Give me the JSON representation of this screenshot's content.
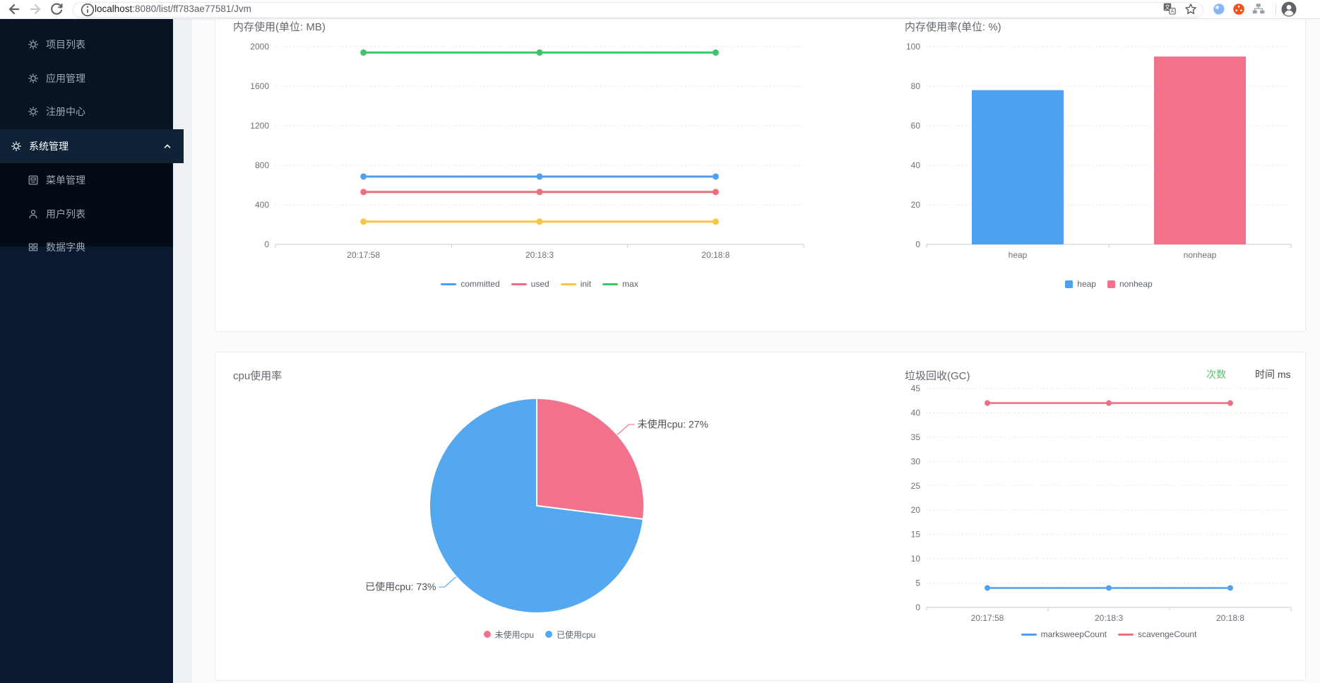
{
  "browser": {
    "url_host": "localhost",
    "url_path": ":8080/list/ff783ae77581/Jvm"
  },
  "sidebar": {
    "items": [
      {
        "label": "项目列表",
        "icon": "gear",
        "active": false
      },
      {
        "label": "应用管理",
        "icon": "gear",
        "active": false
      },
      {
        "label": "注册中心",
        "icon": "gear",
        "active": false
      },
      {
        "label": "系统管理",
        "icon": "gear",
        "active": true,
        "expanded": true
      },
      {
        "label": "菜单管理",
        "icon": "menu-doc",
        "active": false
      },
      {
        "label": "用户列表",
        "icon": "user",
        "active": false
      },
      {
        "label": "数据字典",
        "icon": "grid",
        "active": false
      }
    ]
  },
  "chart_data": [
    {
      "type": "line",
      "title": "内存使用(单位: MB)",
      "categories": [
        "20:17:58",
        "20:18:3",
        "20:18:8"
      ],
      "series": [
        {
          "name": "committed",
          "color": "#4da2f0",
          "values": [
            686,
            686,
            686
          ]
        },
        {
          "name": "used",
          "color": "#ee6e80",
          "values": [
            530,
            530,
            530
          ]
        },
        {
          "name": "init",
          "color": "#f7c649",
          "values": [
            230,
            230,
            230
          ]
        },
        {
          "name": "max",
          "color": "#43c26c",
          "values": [
            1940,
            1940,
            1940
          ]
        }
      ],
      "ylim": [
        0,
        2000
      ],
      "yticks": [
        0,
        400,
        800,
        1200,
        1600,
        2000
      ],
      "grid": "dotted",
      "legend_position": "bottom",
      "legend_icon": "line"
    },
    {
      "type": "bar",
      "title": "内存使用率(单位: %)",
      "categories": [
        "heap",
        "nonheap"
      ],
      "values": [
        78,
        95
      ],
      "colors": [
        "#4da2f0",
        "#f2718b"
      ],
      "ylim": [
        0,
        100
      ],
      "yticks": [
        0,
        20,
        40,
        60,
        80,
        100
      ],
      "grid": "dotted",
      "legend_position": "bottom",
      "legend_icon": "rect"
    },
    {
      "type": "pie",
      "title": "cpu使用率",
      "slices": [
        {
          "name": "未使用cpu",
          "value": 27,
          "color": "#f2718b",
          "label": "未使用cpu: 27%"
        },
        {
          "name": "已使用cpu",
          "value": 73,
          "color": "#54a8f0",
          "label": "已使用cpu: 73%"
        }
      ],
      "legend_position": "bottom",
      "legend_icon": "circle"
    },
    {
      "type": "line",
      "title": "垃圾回收(GC)",
      "unit_toggle": {
        "count": "次数",
        "time": "时间 ms",
        "active": "次数"
      },
      "categories": [
        "20:17:58",
        "20:18:3",
        "20:18:8"
      ],
      "series": [
        {
          "name": "marksweepCount",
          "color": "#4da2f0",
          "values": [
            4,
            4,
            4
          ]
        },
        {
          "name": "scavengeCount",
          "color": "#ee6e80",
          "values": [
            42,
            42,
            42
          ]
        }
      ],
      "ylim": [
        0,
        45
      ],
      "yticks": [
        0,
        5,
        10,
        15,
        20,
        25,
        30,
        35,
        40,
        45
      ],
      "grid": "dotted",
      "legend_position": "bottom",
      "legend_icon": "line"
    }
  ]
}
